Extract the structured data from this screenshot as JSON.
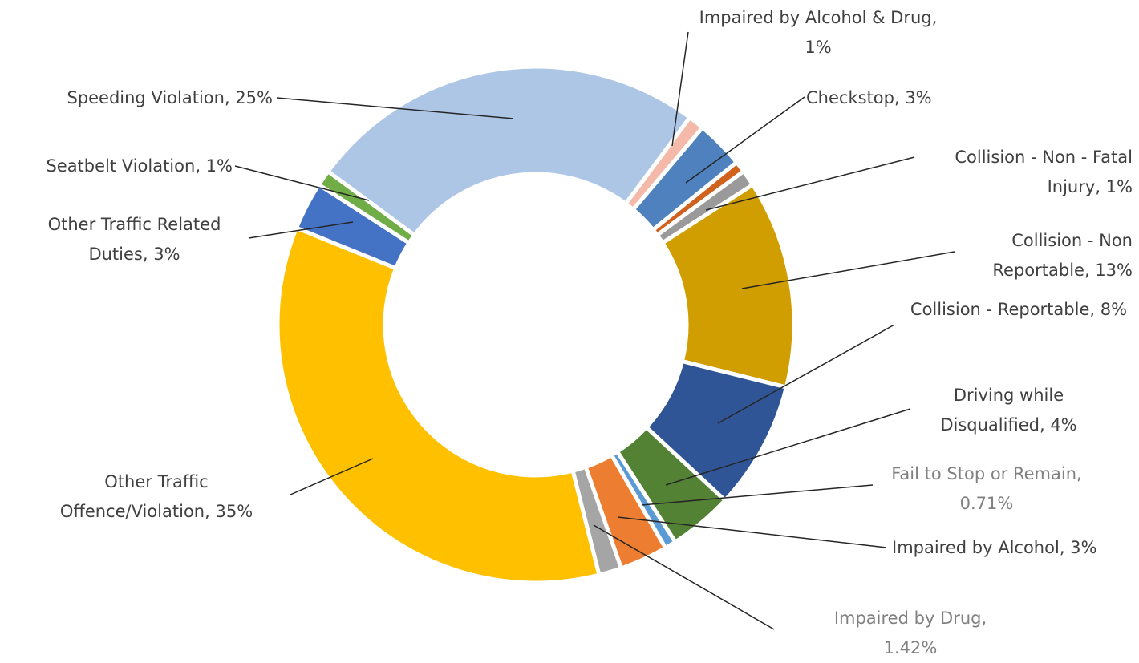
{
  "chart_data": {
    "type": "donut",
    "categories": [
      "Impaired by Alcohol & Drug",
      "Checkstop",
      null,
      "Collision - Non - Fatal Injury",
      "Collision - Non Reportable",
      "Collision - Reportable",
      "Driving while Disqualified",
      "Fail to Stop or Remain",
      "Impaired by Alcohol",
      "Impaired by Drug",
      "Other Traffic Offence/Violation",
      "Other Traffic Related Duties",
      "Seatbelt Violation",
      "Speeding Violation"
    ],
    "values": [
      1,
      3,
      0.7,
      1,
      13,
      8,
      4,
      0.71,
      3,
      1.42,
      35,
      3,
      1,
      25
    ],
    "value_labels": [
      "1%",
      "3%",
      null,
      "1%",
      "13%",
      "8%",
      "4%",
      "0.71%",
      "3%",
      "1.42%",
      "35%",
      "3%",
      "1%",
      "25%"
    ],
    "colors": [
      "#f4b9a9",
      "#4e81bd",
      "#d0621e",
      "#9a9a9a",
      "#d09e00",
      "#2f5597",
      "#548235",
      "#5b9bd5",
      "#ed7d31",
      "#a5a5a5",
      "#ffc000",
      "#4472c4",
      "#70ad47",
      "#adc6e6"
    ]
  }
}
